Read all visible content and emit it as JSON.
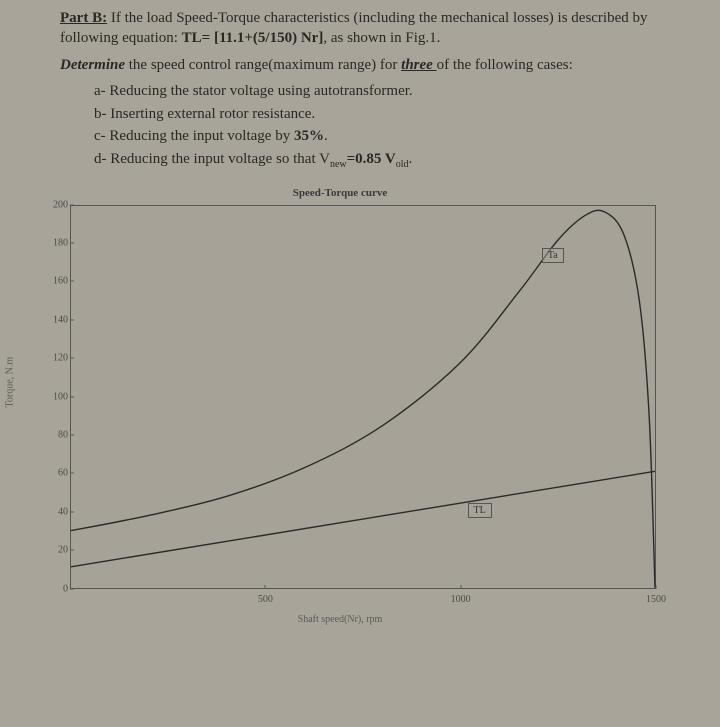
{
  "problem": {
    "heading": "Part B:",
    "intro_1": " If the load Speed-Torque characteristics (including the mechanical losses) is described by following equation: ",
    "eq": "TL= [11.1+(5/150) Nr]",
    "intro_2": ", as shown in Fig.1.",
    "instruction_prefix": "Determine",
    "instruction_body": " the speed control range(maximum range) for ",
    "instruction_three": "three ",
    "instruction_suffix": "of the following cases:",
    "cases": {
      "a": "a-  Reducing the stator voltage using autotransformer.",
      "b": "b-  Inserting external rotor resistance.",
      "c": "c-  Reducing the input voltage by 35%.",
      "d_prefix": "d-  Reducing the input voltage so that V",
      "d_sub1": "new",
      "d_mid": "=0.85 V",
      "d_sub2": "old",
      "d_suffix": "."
    }
  },
  "chart": {
    "type": "line",
    "title": "Speed-Torque curve",
    "xlabel": "Shaft speed(Nr), rpm",
    "ylabel": "Torque, N.m",
    "xlim": [
      0,
      1500
    ],
    "ylim": [
      0,
      200
    ],
    "xticks": [
      500,
      1000,
      1500
    ],
    "yticks": [
      0,
      20,
      40,
      60,
      80,
      100,
      120,
      140,
      160,
      180,
      200
    ],
    "background_color": "#a6a298",
    "axis_color": "#555555",
    "tick_fontsize": 10,
    "title_fontsize": 11,
    "curve_color": "#2a2a2a",
    "curve_width": 1.4,
    "series": {
      "Ta": {
        "label": "Ta",
        "label_pos_x": 1205,
        "label_pos_y": 178,
        "points": [
          [
            0,
            30
          ],
          [
            200,
            38
          ],
          [
            400,
            48
          ],
          [
            600,
            63
          ],
          [
            800,
            85
          ],
          [
            1000,
            118
          ],
          [
            1150,
            155
          ],
          [
            1250,
            182
          ],
          [
            1320,
            195
          ],
          [
            1370,
            197
          ],
          [
            1420,
            185
          ],
          [
            1460,
            150
          ],
          [
            1485,
            90
          ],
          [
            1500,
            0
          ]
        ]
      },
      "TL": {
        "label": "TL",
        "label_pos_x": 1015,
        "label_pos_y": 45,
        "points": [
          [
            0,
            11.1
          ],
          [
            1500,
            61.1
          ]
        ]
      }
    }
  }
}
